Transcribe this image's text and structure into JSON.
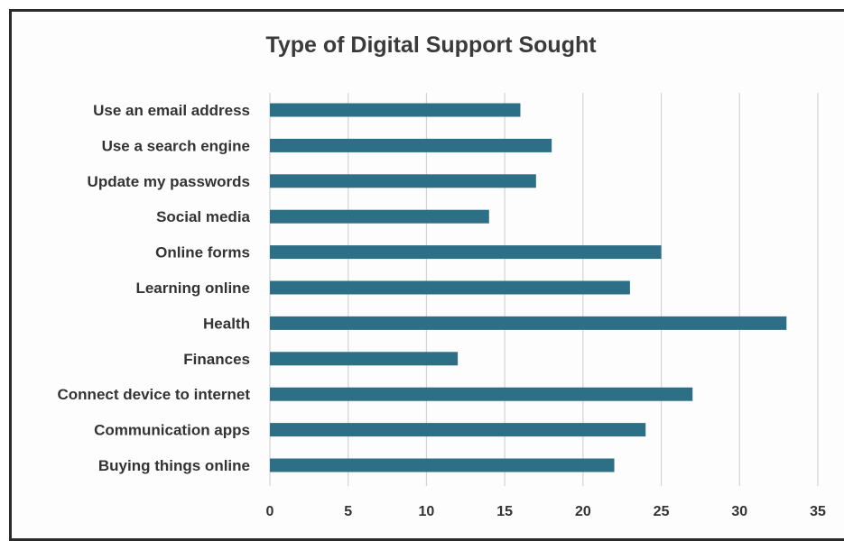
{
  "chart_data": {
    "type": "bar",
    "orientation": "horizontal",
    "title": "Type of Digital Support Sought",
    "xlabel": "",
    "ylabel": "",
    "categories": [
      "Use an email address",
      "Use a search engine",
      "Update my passwords",
      "Social media",
      "Online forms",
      "Learning online",
      "Health",
      "Finances",
      "Connect device to internet",
      "Communication apps",
      "Buying things online"
    ],
    "values": [
      16,
      18,
      17,
      14,
      25,
      23,
      33,
      12,
      27,
      24,
      22
    ],
    "xlim": [
      0,
      35
    ],
    "ticks": [
      "0",
      "5",
      "10",
      "15",
      "20",
      "25",
      "30",
      "35"
    ],
    "grid": "vertical",
    "legend": "none",
    "bar_color": "#2e6f88",
    "grid_color": "#d4d4d4"
  }
}
